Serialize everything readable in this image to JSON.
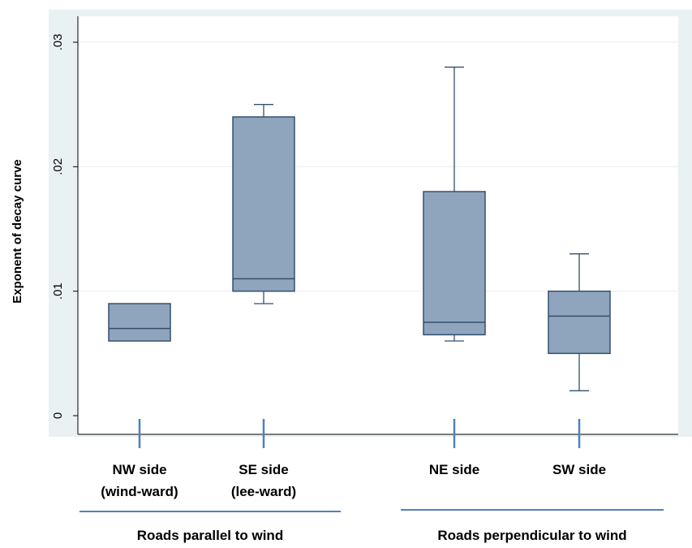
{
  "chart_data": {
    "type": "box",
    "ylabel": "Exponent of decay curve",
    "xlabel": "",
    "ylim": [
      0,
      0.03
    ],
    "yticks": [
      {
        "value": 0,
        "label": "0"
      },
      {
        "value": 0.01,
        "label": ".01"
      },
      {
        "value": 0.02,
        "label": ".02"
      },
      {
        "value": 0.03,
        "label": ".03"
      }
    ],
    "grid": true,
    "box_fill": "#8fa5be",
    "box_stroke": "#34506e",
    "background": "#eaf1f3",
    "categories": [
      {
        "line1": "NW side",
        "line2": "(wind-ward)"
      },
      {
        "line1": "SE side",
        "line2": "(lee-ward)"
      },
      {
        "line1": "NE side",
        "line2": ""
      },
      {
        "line1": "SW side",
        "line2": ""
      }
    ],
    "boxes": [
      {
        "whisker_low": 0.006,
        "q1": 0.006,
        "median": 0.007,
        "q3": 0.009,
        "whisker_high": 0.009
      },
      {
        "whisker_low": 0.009,
        "q1": 0.01,
        "median": 0.011,
        "q3": 0.024,
        "whisker_high": 0.025
      },
      {
        "whisker_low": 0.006,
        "q1": 0.0065,
        "median": 0.0075,
        "q3": 0.018,
        "whisker_high": 0.028
      },
      {
        "whisker_low": 0.002,
        "q1": 0.005,
        "median": 0.008,
        "q3": 0.01,
        "whisker_high": 0.013
      }
    ],
    "groups": [
      {
        "label": "Roads parallel to wind"
      },
      {
        "label": "Roads perpendicular to wind"
      }
    ],
    "group_line_color": "#4f81bd"
  }
}
